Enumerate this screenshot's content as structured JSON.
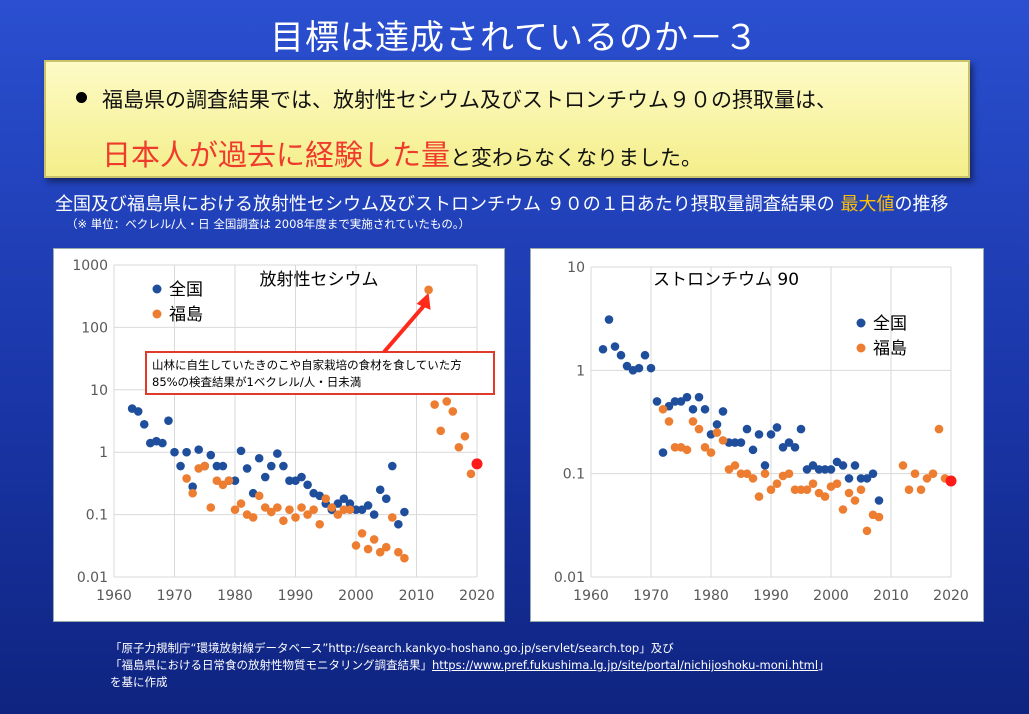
{
  "title": "目標は達成されているのか－３",
  "callout": {
    "line1": "福島県の調査結果では、放射性セシウム及びストロンチウム９０の摂取量は、",
    "line2_highlight": "日本人が過去に経験した量",
    "line2_rest": "と変わらなくなりました。"
  },
  "subtitle": {
    "prefix": "全国及び福島県における放射性セシウム及びストロンチウム ９０の１日あたり摂取量調査結果の",
    "accent": "最大値",
    "suffix": "の推移"
  },
  "note": "（※ 単位：ベクレル/人・日 全国調査は 2008年度まで実施されていたもの。）",
  "source": {
    "line1_prefix": "「原子力規制庁“環境放射線データベース”",
    "line1_url": "http://search.kankyo-hoshano.go.jp/servlet/search.top",
    "line1_suffix": "」及び",
    "line2_prefix": "「福島県における日常食の放射性物質モニタリング調査結果」",
    "line2_url": "https://www.pref.fukushima.lg.jp/site/portal/nichijoshoku-moni.html",
    "line2_suffix": "」",
    "line3": "を基に作成"
  },
  "colors": {
    "national": "#1f4e9c",
    "fukushima": "#ed7d31",
    "latest": "#ff1a1a",
    "accent": "#ffc000",
    "highlight": "#ef3b2c"
  },
  "chart_data": [
    {
      "type": "scatter",
      "title": "放射性セシウム",
      "y_scale": "log",
      "ylim": [
        0.01,
        1000
      ],
      "xlim": [
        1960,
        2020
      ],
      "x_ticks": [
        "1960",
        "1970",
        "1980",
        "1990",
        "2000",
        "2010",
        "2020"
      ],
      "y_ticks": [
        "0.01",
        "0.1",
        "1",
        "10",
        "100",
        "1000"
      ],
      "grid": true,
      "legend_position": "top-left",
      "annotation": {
        "line1": "山林に自生していたきのこや自家栽培の食材を食していた方",
        "line2": "85%の検査結果が1ベクレル/人・日未満",
        "target_x": 2012,
        "target_y": 400
      },
      "series": [
        {
          "name": "全国",
          "points": [
            [
              1963,
              5.0
            ],
            [
              1964,
              4.5
            ],
            [
              1965,
              2.8
            ],
            [
              1966,
              1.4
            ],
            [
              1967,
              1.5
            ],
            [
              1968,
              1.4
            ],
            [
              1969,
              3.2
            ],
            [
              1970,
              1.0
            ],
            [
              1971,
              0.6
            ],
            [
              1972,
              1.0
            ],
            [
              1973,
              0.28
            ],
            [
              1974,
              1.1
            ],
            [
              1975,
              0.6
            ],
            [
              1976,
              0.9
            ],
            [
              1977,
              0.6
            ],
            [
              1978,
              0.6
            ],
            [
              1979,
              0.35
            ],
            [
              1980,
              0.35
            ],
            [
              1981,
              1.05
            ],
            [
              1982,
              0.55
            ],
            [
              1983,
              0.22
            ],
            [
              1984,
              0.8
            ],
            [
              1985,
              0.4
            ],
            [
              1986,
              0.6
            ],
            [
              1987,
              0.95
            ],
            [
              1988,
              0.6
            ],
            [
              1989,
              0.35
            ],
            [
              1990,
              0.35
            ],
            [
              1991,
              0.4
            ],
            [
              1992,
              0.3
            ],
            [
              1993,
              0.22
            ],
            [
              1994,
              0.2
            ],
            [
              1995,
              0.15
            ],
            [
              1996,
              0.12
            ],
            [
              1997,
              0.15
            ],
            [
              1998,
              0.18
            ],
            [
              1999,
              0.15
            ],
            [
              2000,
              0.12
            ],
            [
              2001,
              0.12
            ],
            [
              2002,
              0.14
            ],
            [
              2003,
              0.1
            ],
            [
              2004,
              0.25
            ],
            [
              2005,
              0.18
            ],
            [
              2006,
              0.6
            ],
            [
              2007,
              0.07
            ],
            [
              2008,
              0.11
            ]
          ]
        },
        {
          "name": "福島",
          "points": [
            [
              1972,
              0.38
            ],
            [
              1973,
              0.22
            ],
            [
              1974,
              0.55
            ],
            [
              1975,
              0.6
            ],
            [
              1976,
              0.13
            ],
            [
              1977,
              0.35
            ],
            [
              1978,
              0.3
            ],
            [
              1979,
              0.35
            ],
            [
              1980,
              0.12
            ],
            [
              1981,
              0.15
            ],
            [
              1982,
              0.1
            ],
            [
              1983,
              0.09
            ],
            [
              1984,
              0.2
            ],
            [
              1985,
              0.13
            ],
            [
              1986,
              0.11
            ],
            [
              1987,
              0.13
            ],
            [
              1988,
              0.08
            ],
            [
              1989,
              0.12
            ],
            [
              1990,
              0.09
            ],
            [
              1991,
              0.13
            ],
            [
              1992,
              0.1
            ],
            [
              1993,
              0.12
            ],
            [
              1994,
              0.07
            ],
            [
              1995,
              0.18
            ],
            [
              1996,
              0.13
            ],
            [
              1997,
              0.1
            ],
            [
              1998,
              0.12
            ],
            [
              1999,
              0.12
            ],
            [
              2000,
              0.032
            ],
            [
              2001,
              0.05
            ],
            [
              2002,
              0.028
            ],
            [
              2003,
              0.04
            ],
            [
              2004,
              0.025
            ],
            [
              2005,
              0.03
            ],
            [
              2006,
              0.09
            ],
            [
              2007,
              0.025
            ],
            [
              2008,
              0.02
            ],
            [
              2012,
              400
            ],
            [
              2013,
              5.8
            ],
            [
              2014,
              2.2
            ],
            [
              2015,
              6.5
            ],
            [
              2016,
              4.5
            ],
            [
              2017,
              1.2
            ],
            [
              2018,
              1.8
            ],
            [
              2019,
              0.45
            ]
          ]
        },
        {
          "name": "latest",
          "points": [
            [
              2020,
              0.65
            ]
          ]
        }
      ]
    },
    {
      "type": "scatter",
      "title": "ストロンチウム 90",
      "y_scale": "log",
      "ylim": [
        0.01,
        10
      ],
      "xlim": [
        1960,
        2020
      ],
      "x_ticks": [
        "1960",
        "1970",
        "1980",
        "1990",
        "2000",
        "2010",
        "2020"
      ],
      "y_ticks": [
        "0.01",
        "0.1",
        "1",
        "10"
      ],
      "grid": true,
      "legend_position": "top-right",
      "series": [
        {
          "name": "全国",
          "points": [
            [
              1962,
              1.6
            ],
            [
              1963,
              3.1
            ],
            [
              1964,
              1.7
            ],
            [
              1965,
              1.4
            ],
            [
              1966,
              1.1
            ],
            [
              1967,
              1.0
            ],
            [
              1968,
              1.05
            ],
            [
              1969,
              1.4
            ],
            [
              1970,
              1.05
            ],
            [
              1971,
              0.5
            ],
            [
              1972,
              0.16
            ],
            [
              1973,
              0.45
            ],
            [
              1974,
              0.5
            ],
            [
              1975,
              0.5
            ],
            [
              1976,
              0.55
            ],
            [
              1977,
              0.42
            ],
            [
              1978,
              0.55
            ],
            [
              1979,
              0.42
            ],
            [
              1980,
              0.24
            ],
            [
              1981,
              0.3
            ],
            [
              1982,
              0.4
            ],
            [
              1983,
              0.2
            ],
            [
              1984,
              0.2
            ],
            [
              1985,
              0.2
            ],
            [
              1986,
              0.27
            ],
            [
              1987,
              0.17
            ],
            [
              1988,
              0.24
            ],
            [
              1989,
              0.12
            ],
            [
              1990,
              0.24
            ],
            [
              1991,
              0.28
            ],
            [
              1992,
              0.18
            ],
            [
              1993,
              0.2
            ],
            [
              1994,
              0.18
            ],
            [
              1995,
              0.27
            ],
            [
              1996,
              0.11
            ],
            [
              1997,
              0.12
            ],
            [
              1998,
              0.11
            ],
            [
              1999,
              0.11
            ],
            [
              2000,
              0.11
            ],
            [
              2001,
              0.13
            ],
            [
              2002,
              0.12
            ],
            [
              2003,
              0.09
            ],
            [
              2004,
              0.12
            ],
            [
              2005,
              0.09
            ],
            [
              2006,
              0.09
            ],
            [
              2007,
              0.1
            ],
            [
              2008,
              0.055
            ]
          ]
        },
        {
          "name": "福島",
          "points": [
            [
              1972,
              0.42
            ],
            [
              1973,
              0.32
            ],
            [
              1974,
              0.18
            ],
            [
              1975,
              0.18
            ],
            [
              1976,
              0.17
            ],
            [
              1977,
              0.32
            ],
            [
              1978,
              0.27
            ],
            [
              1979,
              0.18
            ],
            [
              1980,
              0.16
            ],
            [
              1981,
              0.25
            ],
            [
              1982,
              0.21
            ],
            [
              1983,
              0.11
            ],
            [
              1984,
              0.12
            ],
            [
              1985,
              0.1
            ],
            [
              1986,
              0.1
            ],
            [
              1987,
              0.09
            ],
            [
              1988,
              0.06
            ],
            [
              1989,
              0.1
            ],
            [
              1990,
              0.07
            ],
            [
              1991,
              0.08
            ],
            [
              1992,
              0.095
            ],
            [
              1993,
              0.1
            ],
            [
              1994,
              0.07
            ],
            [
              1995,
              0.07
            ],
            [
              1996,
              0.07
            ],
            [
              1997,
              0.08
            ],
            [
              1998,
              0.065
            ],
            [
              1999,
              0.06
            ],
            [
              2000,
              0.075
            ],
            [
              2001,
              0.08
            ],
            [
              2002,
              0.045
            ],
            [
              2003,
              0.065
            ],
            [
              2004,
              0.055
            ],
            [
              2005,
              0.07
            ],
            [
              2006,
              0.028
            ],
            [
              2007,
              0.04
            ],
            [
              2008,
              0.038
            ],
            [
              2012,
              0.12
            ],
            [
              2013,
              0.07
            ],
            [
              2014,
              0.1
            ],
            [
              2015,
              0.07
            ],
            [
              2016,
              0.09
            ],
            [
              2017,
              0.1
            ],
            [
              2018,
              0.27
            ],
            [
              2019,
              0.09
            ]
          ]
        },
        {
          "name": "latest",
          "points": [
            [
              2020,
              0.085
            ]
          ]
        }
      ]
    }
  ]
}
